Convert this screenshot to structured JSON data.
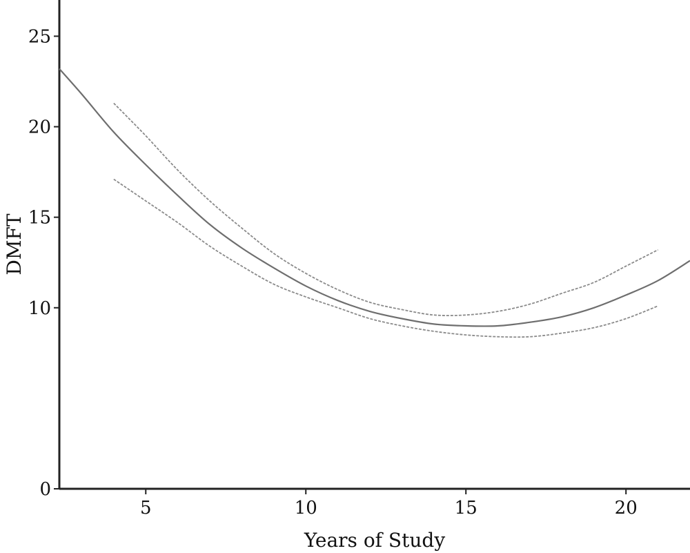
{
  "chart_data": {
    "type": "line",
    "xlabel": "Years of Study",
    "ylabel": "DMFT",
    "xlim": [
      2.3,
      22
    ],
    "ylim": [
      0,
      27
    ],
    "x_ticks": [
      5,
      10,
      15,
      20
    ],
    "y_ticks": [
      0,
      10,
      15,
      20,
      25
    ],
    "grid": false,
    "series": [
      {
        "style": "solid",
        "x": [
          2.3,
          3,
          4,
          5,
          6,
          7,
          8,
          9,
          10,
          11,
          12,
          13,
          14,
          15,
          16,
          17,
          18,
          19,
          20,
          21,
          22
        ],
        "values": [
          23.2,
          21.8,
          19.7,
          17.9,
          16.2,
          14.6,
          13.3,
          12.2,
          11.2,
          10.4,
          9.8,
          9.4,
          9.1,
          9.0,
          9.0,
          9.2,
          9.5,
          10.0,
          10.7,
          11.5,
          12.6
        ]
      },
      {
        "style": "dashed",
        "x": [
          4,
          5,
          6,
          7,
          8,
          9,
          10,
          11,
          12,
          13,
          14,
          15,
          16,
          17,
          18,
          19,
          20,
          21
        ],
        "values": [
          21.3,
          19.5,
          17.6,
          15.9,
          14.4,
          13.0,
          11.9,
          11.0,
          10.3,
          9.9,
          9.6,
          9.6,
          9.8,
          10.2,
          10.8,
          11.4,
          12.3,
          13.2
        ]
      },
      {
        "style": "dashed",
        "x": [
          4,
          5,
          6,
          7,
          8,
          9,
          10,
          11,
          12,
          13,
          14,
          15,
          16,
          17,
          18,
          19,
          20,
          21
        ],
        "values": [
          17.1,
          15.9,
          14.7,
          13.4,
          12.3,
          11.3,
          10.6,
          10.0,
          9.4,
          9.0,
          8.7,
          8.5,
          8.4,
          8.4,
          8.6,
          8.9,
          9.4,
          10.1
        ]
      }
    ]
  }
}
